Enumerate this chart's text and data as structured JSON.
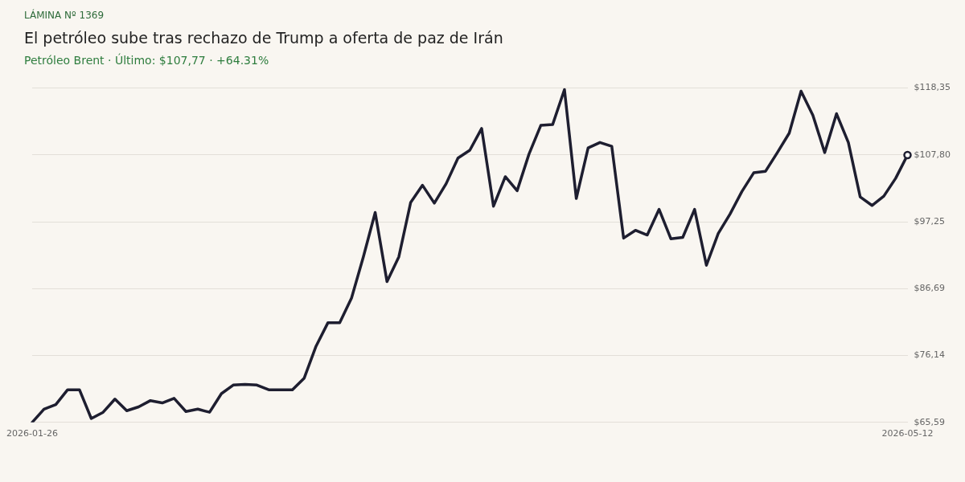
{
  "chart_data": {
    "type": "line",
    "title": "El petróleo sube tras rechazo de Trump a oferta de paz de Irán",
    "subtitle": "Petróleo Brent · Último: $107,77 · +64.31%",
    "annotations": [
      "LÁMINA Nº 1369"
    ],
    "categories": [
      "2026-01-26",
      null,
      null,
      null,
      null,
      null,
      null,
      null,
      null,
      null,
      null,
      null,
      null,
      null,
      null,
      null,
      null,
      null,
      null,
      null,
      null,
      null,
      null,
      null,
      null,
      null,
      null,
      null,
      null,
      null,
      null,
      null,
      null,
      null,
      null,
      null,
      null,
      null,
      null,
      null,
      null,
      null,
      null,
      null,
      null,
      null,
      null,
      null,
      null,
      null,
      null,
      null,
      null,
      null,
      null,
      null,
      null,
      null,
      null,
      null,
      null,
      null,
      null,
      null,
      null,
      null,
      null,
      null,
      null,
      null,
      null,
      null,
      null,
      null,
      "2026-05-12"
    ],
    "series": [
      {
        "color": "#1e1e30",
        "values": [
          65.59,
          67.68,
          68.41,
          70.74,
          70.74,
          66.2,
          67.19,
          69.27,
          67.43,
          68.04,
          69.03,
          68.66,
          69.39,
          67.31,
          67.68,
          67.19,
          70.13,
          71.48,
          71.6,
          71.48,
          70.74,
          70.74,
          70.74,
          72.58,
          77.61,
          81.3,
          81.3,
          85.22,
          91.72,
          98.72,
          87.8,
          91.72,
          100.31,
          103.01,
          100.19,
          103.26,
          107.31,
          108.54,
          111.97,
          99.7,
          104.36,
          102.15,
          107.92,
          112.46,
          112.58,
          118.11,
          100.93,
          108.9,
          109.76,
          109.15,
          94.67,
          95.9,
          95.16,
          99.21,
          94.55,
          94.79,
          99.21,
          90.38,
          95.41,
          98.48,
          102.03,
          104.98,
          105.22,
          108.17,
          111.23,
          117.86,
          114.06,
          108.17,
          114.3,
          109.76,
          101.17,
          99.82,
          101.3,
          104.12,
          107.77
        ]
      }
    ],
    "ylim": [
      65.59,
      118.35
    ],
    "yticks": [
      {
        "value": 65.59,
        "label": "$65,59"
      },
      {
        "value": 76.14,
        "label": "$76,14"
      },
      {
        "value": 86.69,
        "label": "$86,69"
      },
      {
        "value": 97.25,
        "label": "$97,25"
      },
      {
        "value": 107.8,
        "label": "$107,80"
      },
      {
        "value": 118.35,
        "label": "$118,35"
      }
    ],
    "grid": "y",
    "legend": false
  }
}
